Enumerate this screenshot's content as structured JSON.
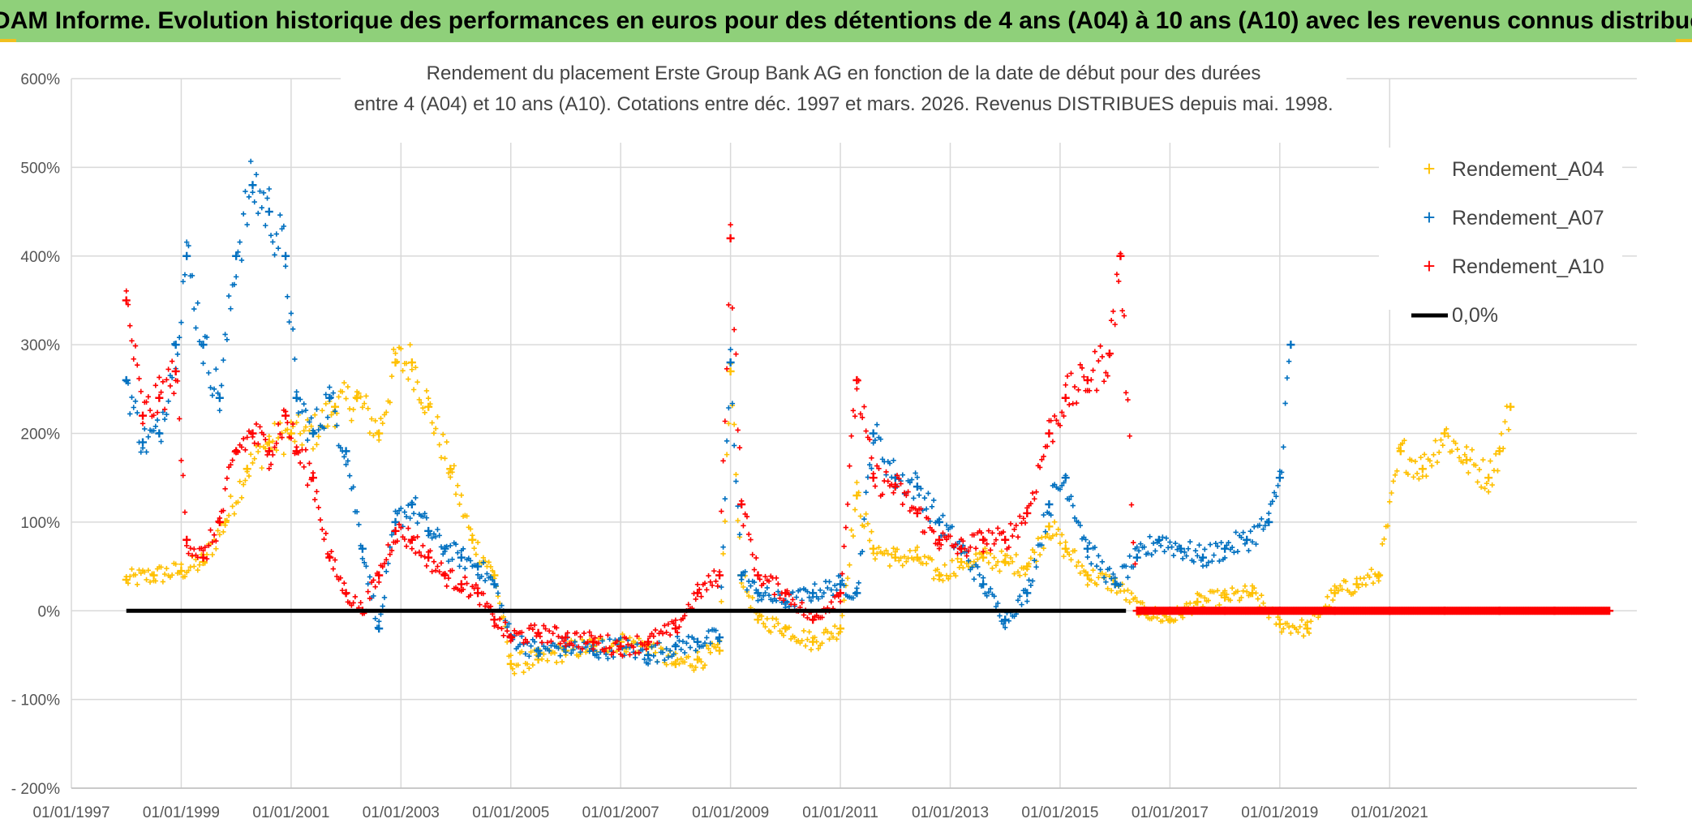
{
  "banner": {
    "title": "ADAM Informe. Evolution historique des performances en euros pour des détentions de 4 ans (A04) à 10 ans (A10) avec les revenus connus distribués"
  },
  "chart_data": {
    "type": "scatter",
    "title_line1": "Rendement du placement Erste Group Bank AG en fonction de la date de début pour des durées",
    "title_line2": "entre 4 (A04) et 10 ans (A10). Cotations entre déc. 1997 et mars. 2026. Revenus DISTRIBUES depuis mai. 1998.",
    "xlabel": "",
    "ylabel": "",
    "x_range": [
      1997.0,
      2025.5
    ],
    "ylim": [
      -200,
      600
    ],
    "y_ticks": [
      600,
      500,
      400,
      300,
      200,
      100,
      0,
      -100,
      -200
    ],
    "y_tick_labels": [
      "600%",
      "500%",
      "400%",
      "300%",
      "200%",
      "100%",
      "0%",
      "- 100%",
      "- 200%"
    ],
    "x_ticks": [
      1997,
      1999,
      2001,
      2003,
      2005,
      2007,
      2009,
      2011,
      2013,
      2015,
      2017,
      2019,
      2021
    ],
    "x_tick_labels": [
      "01/01/1997",
      "01/01/1999",
      "01/01/2001",
      "01/01/2003",
      "01/01/2005",
      "01/01/2007",
      "01/01/2009",
      "01/01/2011",
      "01/01/2013",
      "01/01/2015",
      "01/01/2017",
      "01/01/2019",
      "01/01/2021"
    ],
    "grid": true,
    "legend_position": "top-right",
    "series": [
      {
        "name": "Rendement_A04",
        "color": "#ffc000",
        "marker": "+",
        "x": [
          1998.0,
          1998.5,
          1999.0,
          1999.4,
          1999.8,
          2000.2,
          2000.6,
          2001.0,
          2001.4,
          2001.8,
          2002.2,
          2002.6,
          2002.9,
          2003.2,
          2003.5,
          2003.9,
          2004.3,
          2004.7,
          2005.0,
          2005.5,
          2006.0,
          2006.5,
          2007.0,
          2007.5,
          2008.0,
          2008.4,
          2008.8,
          2009.0,
          2009.2,
          2009.5,
          2010.0,
          2010.5,
          2011.0,
          2011.3,
          2011.6,
          2012.0,
          2012.4,
          2012.8,
          2013.2,
          2013.6,
          2014.0,
          2014.4,
          2014.8,
          2015.1,
          2015.5,
          2016.0,
          2016.5,
          2017.0,
          2017.5,
          2018.0,
          2018.5,
          2019.0,
          2019.5,
          2020.0,
          2020.4,
          2020.8,
          2021.2,
          2021.6,
          2022.0,
          2022.4,
          2022.8,
          2023.0,
          2023.2
        ],
        "y": [
          35,
          40,
          45,
          55,
          100,
          160,
          190,
          200,
          200,
          230,
          240,
          200,
          280,
          280,
          230,
          160,
          80,
          40,
          -60,
          -55,
          -45,
          -40,
          -35,
          -40,
          -60,
          -55,
          -45,
          270,
          40,
          -10,
          -20,
          -35,
          -20,
          130,
          70,
          60,
          60,
          40,
          55,
          60,
          55,
          50,
          95,
          70,
          40,
          30,
          0,
          -10,
          10,
          15,
          20,
          -15,
          -20,
          20,
          30,
          40,
          180,
          160,
          200,
          170,
          150,
          180,
          230
        ]
      },
      {
        "name": "Rendement_A07",
        "color": "#0070c0",
        "marker": "+",
        "x": [
          1998.0,
          1998.3,
          1998.6,
          1998.9,
          1999.1,
          1999.4,
          1999.7,
          2000.0,
          2000.3,
          2000.6,
          2000.9,
          2001.1,
          2001.4,
          2001.7,
          2002.0,
          2002.3,
          2002.6,
          2002.9,
          2003.2,
          2003.5,
          2003.8,
          2004.1,
          2004.4,
          2004.7,
          2005.0,
          2005.5,
          2006.0,
          2006.5,
          2007.0,
          2007.5,
          2008.0,
          2008.4,
          2008.8,
          2009.0,
          2009.2,
          2009.5,
          2010.0,
          2010.5,
          2011.0,
          2011.3,
          2011.6,
          2012.0,
          2012.4,
          2012.8,
          2013.2,
          2013.6,
          2014.0,
          2014.4,
          2014.8,
          2015.1,
          2015.5,
          2016.0,
          2016.4,
          2016.8,
          2017.2,
          2017.6,
          2018.0,
          2018.4,
          2018.8,
          2019.0,
          2019.2
        ],
        "y": [
          260,
          190,
          200,
          300,
          400,
          300,
          240,
          400,
          480,
          450,
          400,
          240,
          200,
          240,
          180,
          70,
          -20,
          100,
          120,
          90,
          70,
          60,
          50,
          30,
          -30,
          -45,
          -40,
          -45,
          -40,
          -50,
          -40,
          -35,
          -30,
          280,
          40,
          20,
          10,
          20,
          30,
          20,
          200,
          150,
          140,
          100,
          70,
          30,
          -10,
          20,
          120,
          150,
          70,
          30,
          60,
          80,
          70,
          60,
          70,
          80,
          100,
          150,
          300
        ]
      },
      {
        "name": "Rendement_A10",
        "color": "#ff0000",
        "marker": "+",
        "x": [
          1998.0,
          1998.3,
          1998.6,
          1998.9,
          1999.1,
          1999.4,
          1999.7,
          2000.0,
          2000.3,
          2000.6,
          2000.9,
          2001.1,
          2001.4,
          2001.7,
          2002.0,
          2002.3,
          2002.6,
          2002.9,
          2003.2,
          2003.5,
          2003.8,
          2004.1,
          2004.4,
          2004.7,
          2005.0,
          2005.5,
          2006.0,
          2006.5,
          2007.0,
          2007.5,
          2008.0,
          2008.4,
          2008.8,
          2009.0,
          2009.2,
          2009.5,
          2010.0,
          2010.5,
          2011.0,
          2011.3,
          2011.6,
          2012.0,
          2012.4,
          2012.8,
          2013.2,
          2013.6,
          2014.0,
          2014.4,
          2014.8,
          2015.1,
          2015.5,
          2015.9,
          2016.1,
          2016.4,
          2017.0,
          2018.0,
          2019.0,
          2020.0,
          2021.0,
          2022.0,
          2023.0,
          2024.0,
          2025.0
        ],
        "y": [
          350,
          220,
          240,
          270,
          80,
          60,
          100,
          180,
          200,
          180,
          220,
          180,
          150,
          60,
          20,
          0,
          40,
          90,
          80,
          60,
          40,
          30,
          20,
          -10,
          -30,
          -25,
          -30,
          -35,
          -40,
          -35,
          -20,
          20,
          40,
          420,
          120,
          40,
          20,
          -10,
          20,
          260,
          150,
          140,
          110,
          80,
          70,
          80,
          80,
          110,
          200,
          240,
          260,
          290,
          400,
          0,
          0,
          0,
          0,
          0,
          0,
          0,
          0,
          0,
          0
        ]
      }
    ],
    "reference_line": {
      "name": "0,0%",
      "value": 0,
      "x_start": 1998.0,
      "x_end": 2016.2,
      "color": "#000000"
    }
  }
}
